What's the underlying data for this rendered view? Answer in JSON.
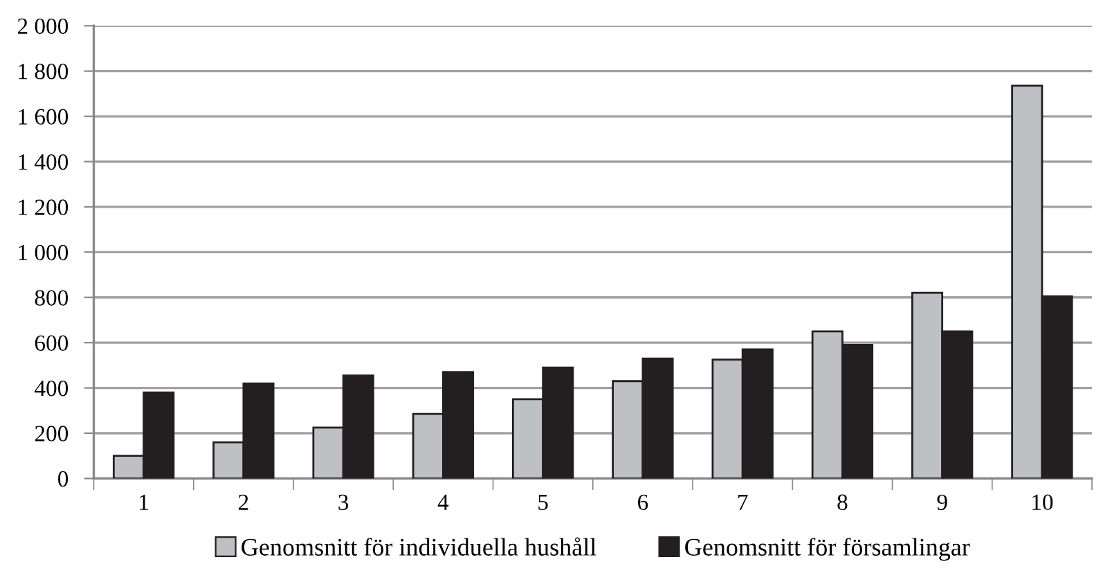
{
  "chart_data": {
    "type": "bar",
    "categories": [
      "1",
      "2",
      "3",
      "4",
      "5",
      "6",
      "7",
      "8",
      "9",
      "10"
    ],
    "series": [
      {
        "name": "Genomsnitt för individuella hushåll",
        "color": "#bfc0c3",
        "values": [
          100,
          160,
          225,
          285,
          350,
          430,
          525,
          650,
          820,
          1735
        ]
      },
      {
        "name": "Genomsnitt för församlingar",
        "color": "#231f20",
        "values": [
          380,
          420,
          455,
          470,
          490,
          530,
          570,
          590,
          650,
          805
        ]
      }
    ],
    "ylim": [
      0,
      2000
    ],
    "yticks": [
      {
        "value": 0,
        "label": "0"
      },
      {
        "value": 200,
        "label": "200"
      },
      {
        "value": 400,
        "label": "400"
      },
      {
        "value": 600,
        "label": "600"
      },
      {
        "value": 800,
        "label": "800"
      },
      {
        "value": 1000,
        "label": "1 000"
      },
      {
        "value": 1200,
        "label": "1 200"
      },
      {
        "value": 1400,
        "label": "1 400"
      },
      {
        "value": 1600,
        "label": "1 600"
      },
      {
        "value": 1800,
        "label": "1 800"
      },
      {
        "value": 2000,
        "label": "2 000"
      }
    ],
    "grid": "y",
    "legend": "bottom"
  }
}
